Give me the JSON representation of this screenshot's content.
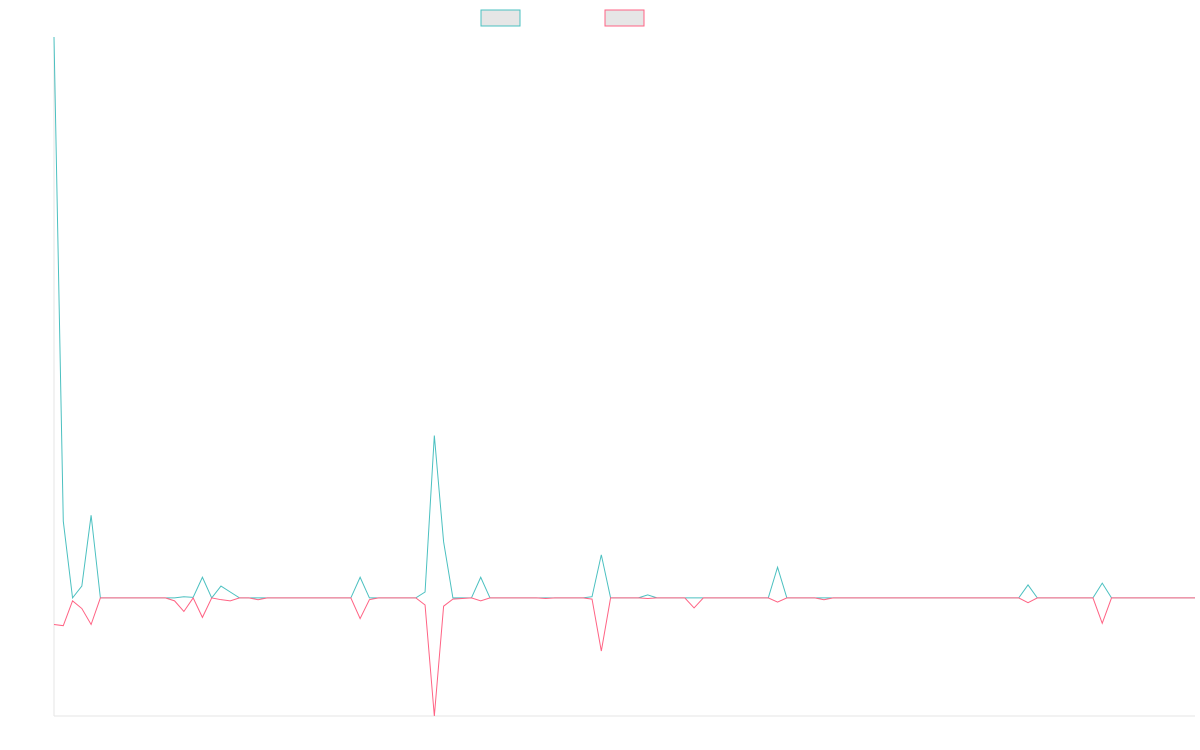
{
  "chart_data": {
    "type": "line",
    "title": "",
    "xlabel": "",
    "ylabel": "",
    "legend_position": "top-center",
    "legend_swatch_fill": "#e6e6e6",
    "grid": false,
    "x": [
      0,
      1,
      2,
      3,
      4,
      5,
      6,
      7,
      8,
      9,
      10,
      11,
      12,
      13,
      14,
      15,
      16,
      17,
      18,
      19,
      20,
      21,
      22,
      23,
      24,
      25,
      26,
      27,
      28,
      29,
      30,
      31,
      32,
      33,
      34,
      35,
      36,
      37,
      38,
      39,
      40,
      41,
      42,
      43,
      44,
      45,
      46,
      47,
      48,
      49,
      50,
      51,
      52,
      53,
      54,
      55,
      56,
      57,
      58,
      59,
      60,
      61,
      62,
      63,
      64,
      65,
      66,
      67,
      68,
      69,
      70,
      71,
      72,
      73,
      74,
      75,
      76,
      77,
      78,
      79,
      80,
      81,
      82,
      83,
      84,
      85,
      86,
      87,
      88,
      89,
      90,
      91,
      92,
      93,
      94,
      95,
      96,
      97,
      98,
      99,
      100,
      101,
      102,
      103,
      104,
      105,
      106,
      107,
      108,
      109,
      110,
      111,
      112,
      113,
      114,
      115,
      116,
      117,
      118,
      119,
      120,
      121,
      122,
      123
    ],
    "xlim": [
      0,
      123
    ],
    "ylim": [
      -20,
      95
    ],
    "series": [
      {
        "color": "#4bc0c0",
        "values": [
          95,
          13,
          0,
          2,
          14,
          0,
          0,
          0,
          0,
          0,
          0,
          0,
          0,
          0,
          0.2,
          0.1,
          3.5,
          0,
          2,
          1,
          0,
          0,
          0,
          0,
          0,
          0,
          0,
          0,
          0,
          0,
          0,
          0,
          0,
          3.5,
          0,
          0,
          0,
          0,
          0,
          0,
          1,
          27.5,
          9.5,
          0,
          0,
          0,
          3.5,
          0,
          0,
          0,
          0,
          0,
          0,
          0,
          0,
          0,
          0,
          0,
          0.2,
          7.3,
          0,
          0,
          0,
          0,
          0.5,
          0,
          0,
          0,
          0,
          0,
          0,
          0,
          0,
          0,
          0,
          0,
          0,
          0,
          5.2,
          0,
          0,
          0,
          0,
          0,
          0,
          0,
          0,
          0,
          0,
          0,
          0,
          0,
          0,
          0,
          0,
          0,
          0,
          0,
          0,
          0,
          0,
          0,
          0,
          0,
          0,
          2.2,
          0,
          0,
          0,
          0,
          0,
          0,
          0,
          2.5,
          0,
          0,
          0,
          0,
          0,
          0,
          0,
          0,
          0,
          0
        ]
      },
      {
        "color": "#ff6384",
        "values": [
          -4.5,
          -4.7,
          -0.5,
          -1.8,
          -4.5,
          0,
          0,
          0,
          0,
          0,
          0,
          0,
          0,
          -0.5,
          -2.3,
          0,
          -3.3,
          0,
          -0.3,
          -0.5,
          0,
          0,
          -0.3,
          0,
          0,
          0,
          0,
          0,
          0,
          0,
          0,
          0,
          0,
          -3.5,
          -0.3,
          0,
          0,
          0,
          0,
          0,
          -1.2,
          -20,
          -1.4,
          -0.2,
          -0.1,
          0,
          -0.5,
          0,
          0,
          0,
          0,
          0,
          0,
          -0.1,
          0,
          0,
          0,
          0,
          -0.2,
          -9,
          0,
          0,
          0,
          0,
          -0.1,
          0,
          0,
          0,
          0,
          -1.7,
          0,
          0,
          0,
          0,
          0,
          0,
          0,
          0,
          -0.7,
          0,
          0,
          0,
          0,
          -0.3,
          0,
          0,
          0,
          0,
          0,
          0,
          0,
          0,
          0,
          0,
          0,
          0,
          0,
          0,
          0,
          0,
          0,
          0,
          0,
          0,
          0,
          -0.8,
          0,
          0,
          0,
          0,
          0,
          0,
          0,
          -4.3,
          0,
          0,
          0,
          0,
          0,
          0,
          0,
          0,
          0,
          0
        ]
      }
    ]
  }
}
